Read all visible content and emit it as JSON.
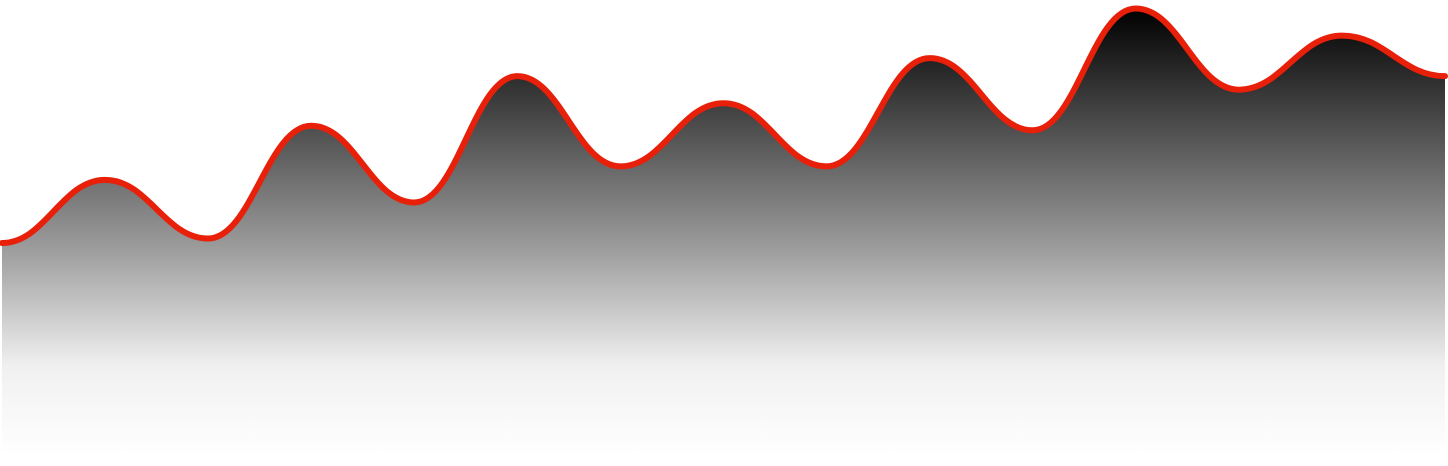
{
  "chart_data": {
    "type": "area",
    "title": "",
    "xlabel": "",
    "ylabel": "",
    "grid": false,
    "legend": "none",
    "x": [
      0,
      1,
      2,
      3,
      4,
      5,
      6,
      7,
      8,
      9,
      10,
      11,
      12,
      13,
      14
    ],
    "xlim": [
      0,
      14
    ],
    "ylim": [
      0,
      100
    ],
    "series": [
      {
        "values": [
          47,
          61,
          48,
          73,
          56,
          84,
          64,
          78,
          64,
          88,
          72,
          99,
          81,
          93,
          84
        ],
        "line_color": "#e8200a",
        "fill_top_color": "#000000",
        "fill_bottom_color": "#ffffff"
      }
    ]
  }
}
